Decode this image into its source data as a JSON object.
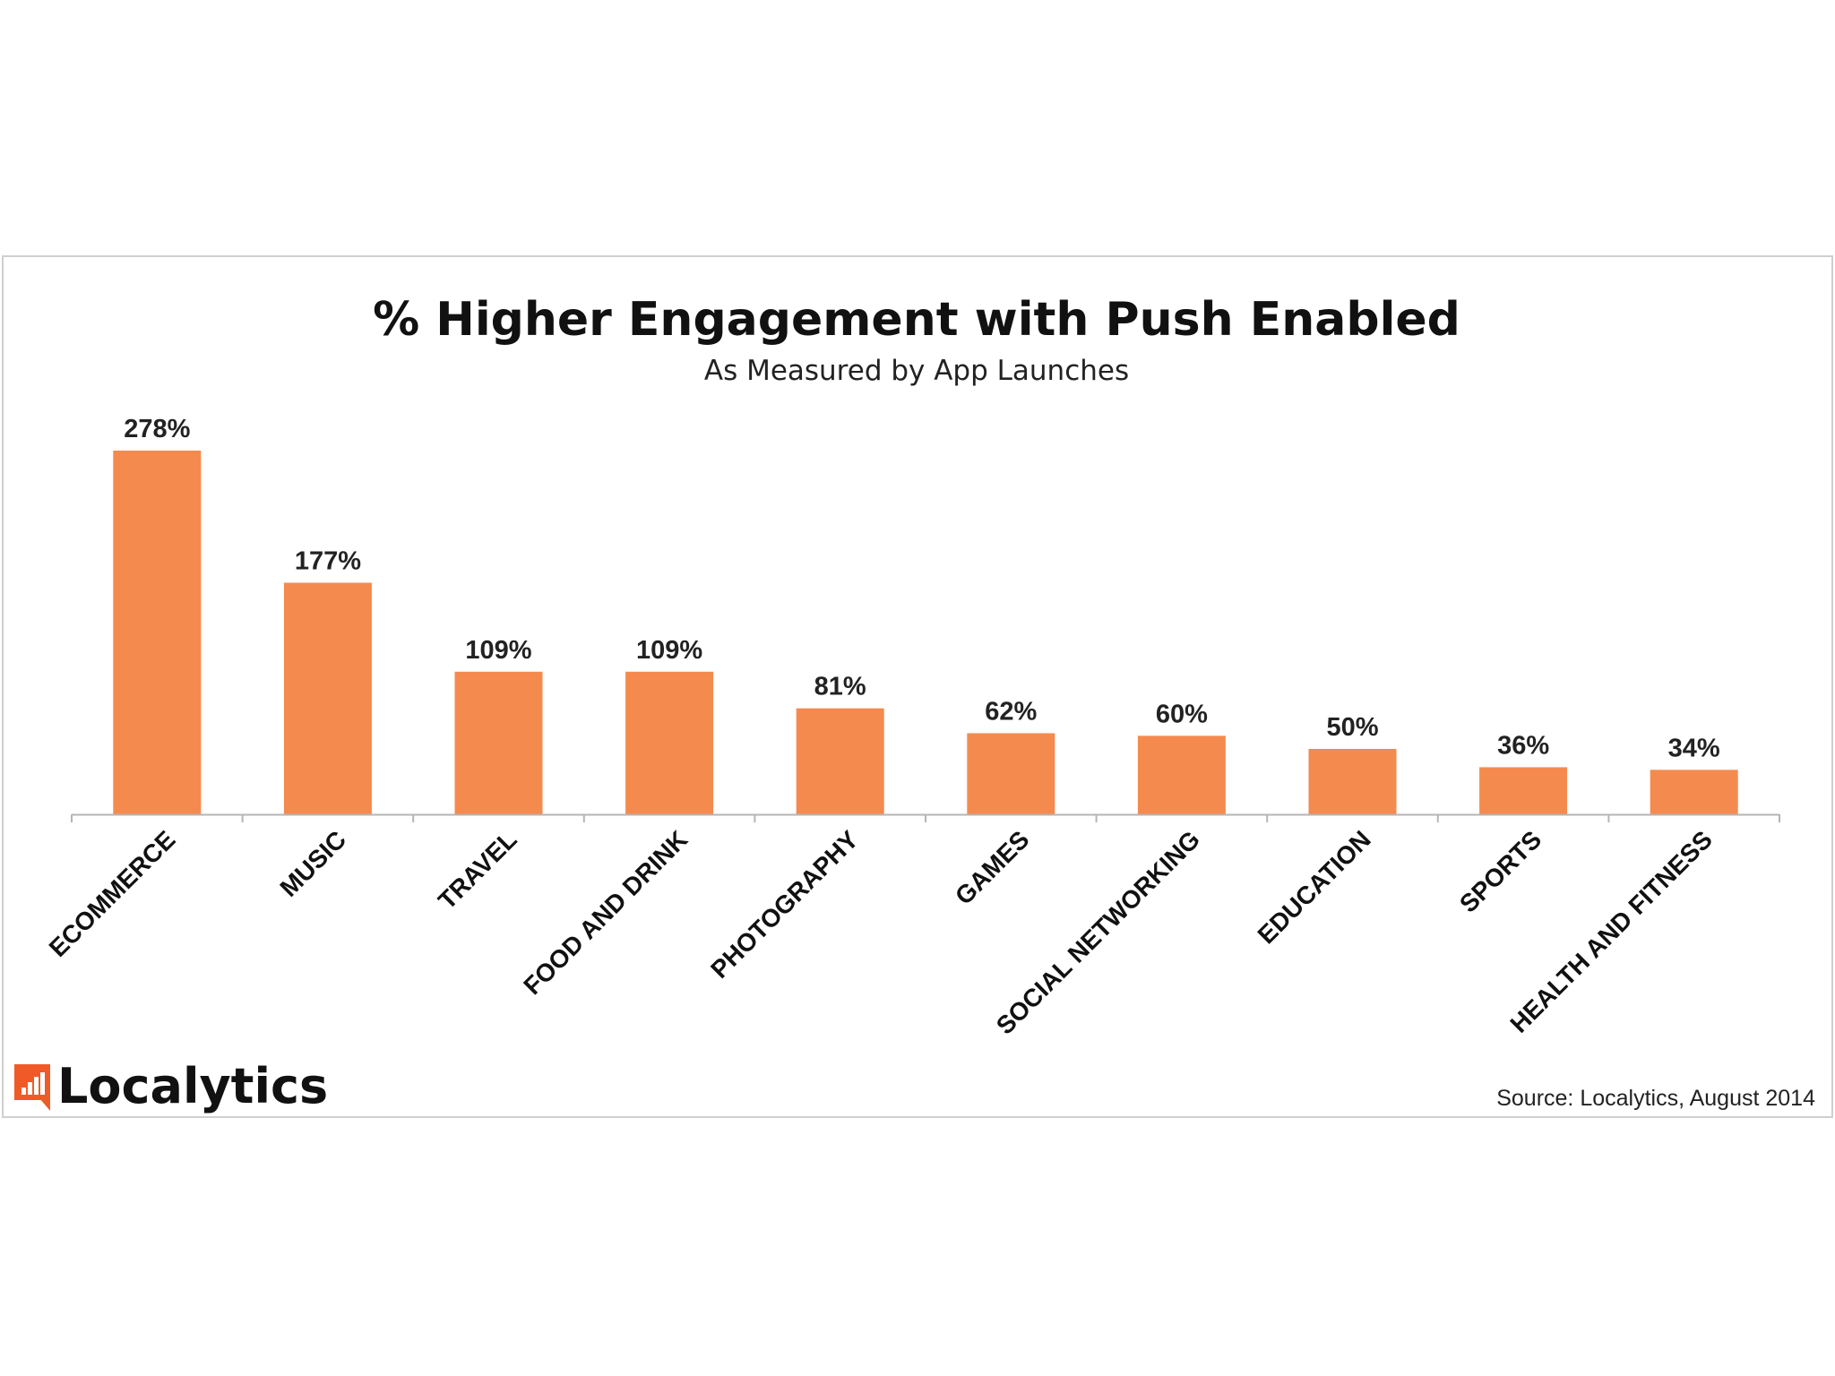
{
  "chart_data": {
    "type": "bar",
    "title": "% Higher Engagement with Push Enabled",
    "subtitle": "As Measured by App Launches",
    "categories": [
      "ECOMMERCE",
      "MUSIC",
      "TRAVEL",
      "FOOD AND DRINK",
      "PHOTOGRAPHY",
      "GAMES",
      "SOCIAL NETWORKING",
      "EDUCATION",
      "SPORTS",
      "HEALTH AND FITNESS"
    ],
    "values": [
      278,
      177,
      109,
      109,
      81,
      62,
      60,
      50,
      36,
      34
    ],
    "value_labels": [
      "278%",
      "177%",
      "109%",
      "109%",
      "81%",
      "62%",
      "60%",
      "50%",
      "36%",
      "34%"
    ],
    "xlabel": "",
    "ylabel": "",
    "ylim": [
      0,
      278
    ],
    "grid": false,
    "bar_color": "#F58A4E",
    "source": "Source: Localytics, August 2014"
  },
  "branding": {
    "logo_text": "Localytics",
    "logo_color": "#F05A28"
  }
}
